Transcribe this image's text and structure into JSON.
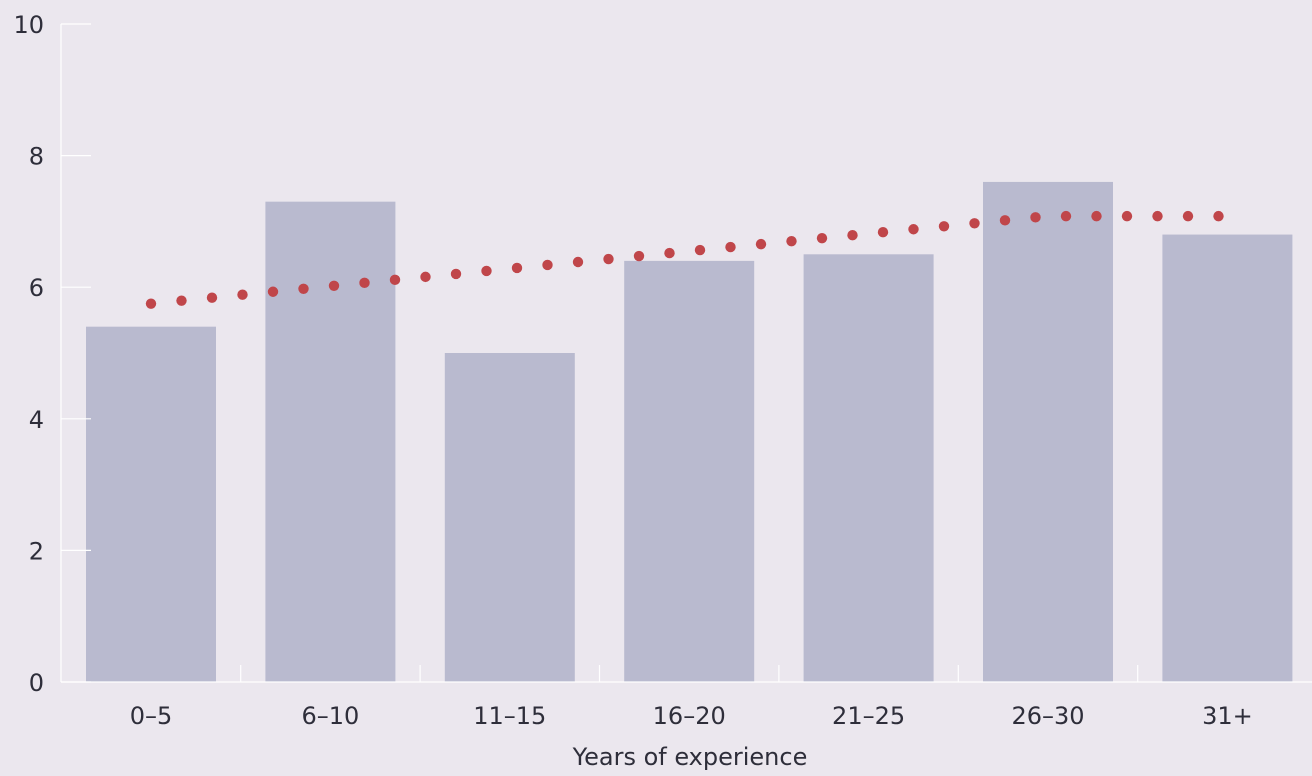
{
  "chart_data": {
    "type": "bar",
    "title": "",
    "xlabel": "Years of experience",
    "ylabel": "",
    "ylim": [
      0,
      10
    ],
    "yticks": [
      0,
      2,
      4,
      6,
      8,
      10
    ],
    "categories": [
      "0–5",
      "6–10",
      "11–15",
      "16–20",
      "21–25",
      "26–30",
      "31+"
    ],
    "values": [
      5.4,
      7.3,
      5.0,
      6.4,
      6.5,
      7.6,
      6.8
    ],
    "trend_line": {
      "style": "dotted",
      "start_value": 5.75,
      "end_value": 7.08,
      "plateau_from_category": "26–30"
    },
    "grid": false,
    "legend": "none",
    "colors": {
      "background": "#ebe7ee",
      "bar": "#b9bacf",
      "trend": "#c0464a",
      "axis": "#ffffff",
      "text": "#2e2e3a"
    }
  }
}
